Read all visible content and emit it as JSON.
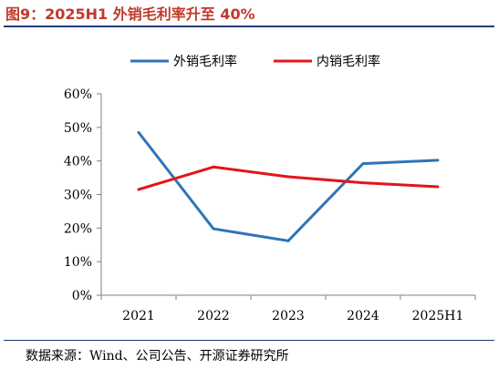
{
  "title": "图9：2025H1 外销毛利率升至 40%",
  "source": "数据来源：Wind、公司公告、开源证券研究所",
  "chart_data": {
    "type": "line",
    "categories": [
      "2021",
      "2022",
      "2023",
      "2024",
      "2025H1"
    ],
    "series": [
      {
        "name": "外销毛利率",
        "color": "#2e75b6",
        "values": [
          48.5,
          19.8,
          16.2,
          39.2,
          40.2
        ]
      },
      {
        "name": "内销毛利率",
        "color": "#e3151a",
        "values": [
          31.5,
          38.2,
          35.3,
          33.5,
          32.3
        ]
      }
    ],
    "yticks": [
      "0%",
      "10%",
      "20%",
      "30%",
      "40%",
      "50%",
      "60%"
    ],
    "ylim": [
      0,
      60
    ],
    "legend_position": "top-center",
    "grid": false
  }
}
